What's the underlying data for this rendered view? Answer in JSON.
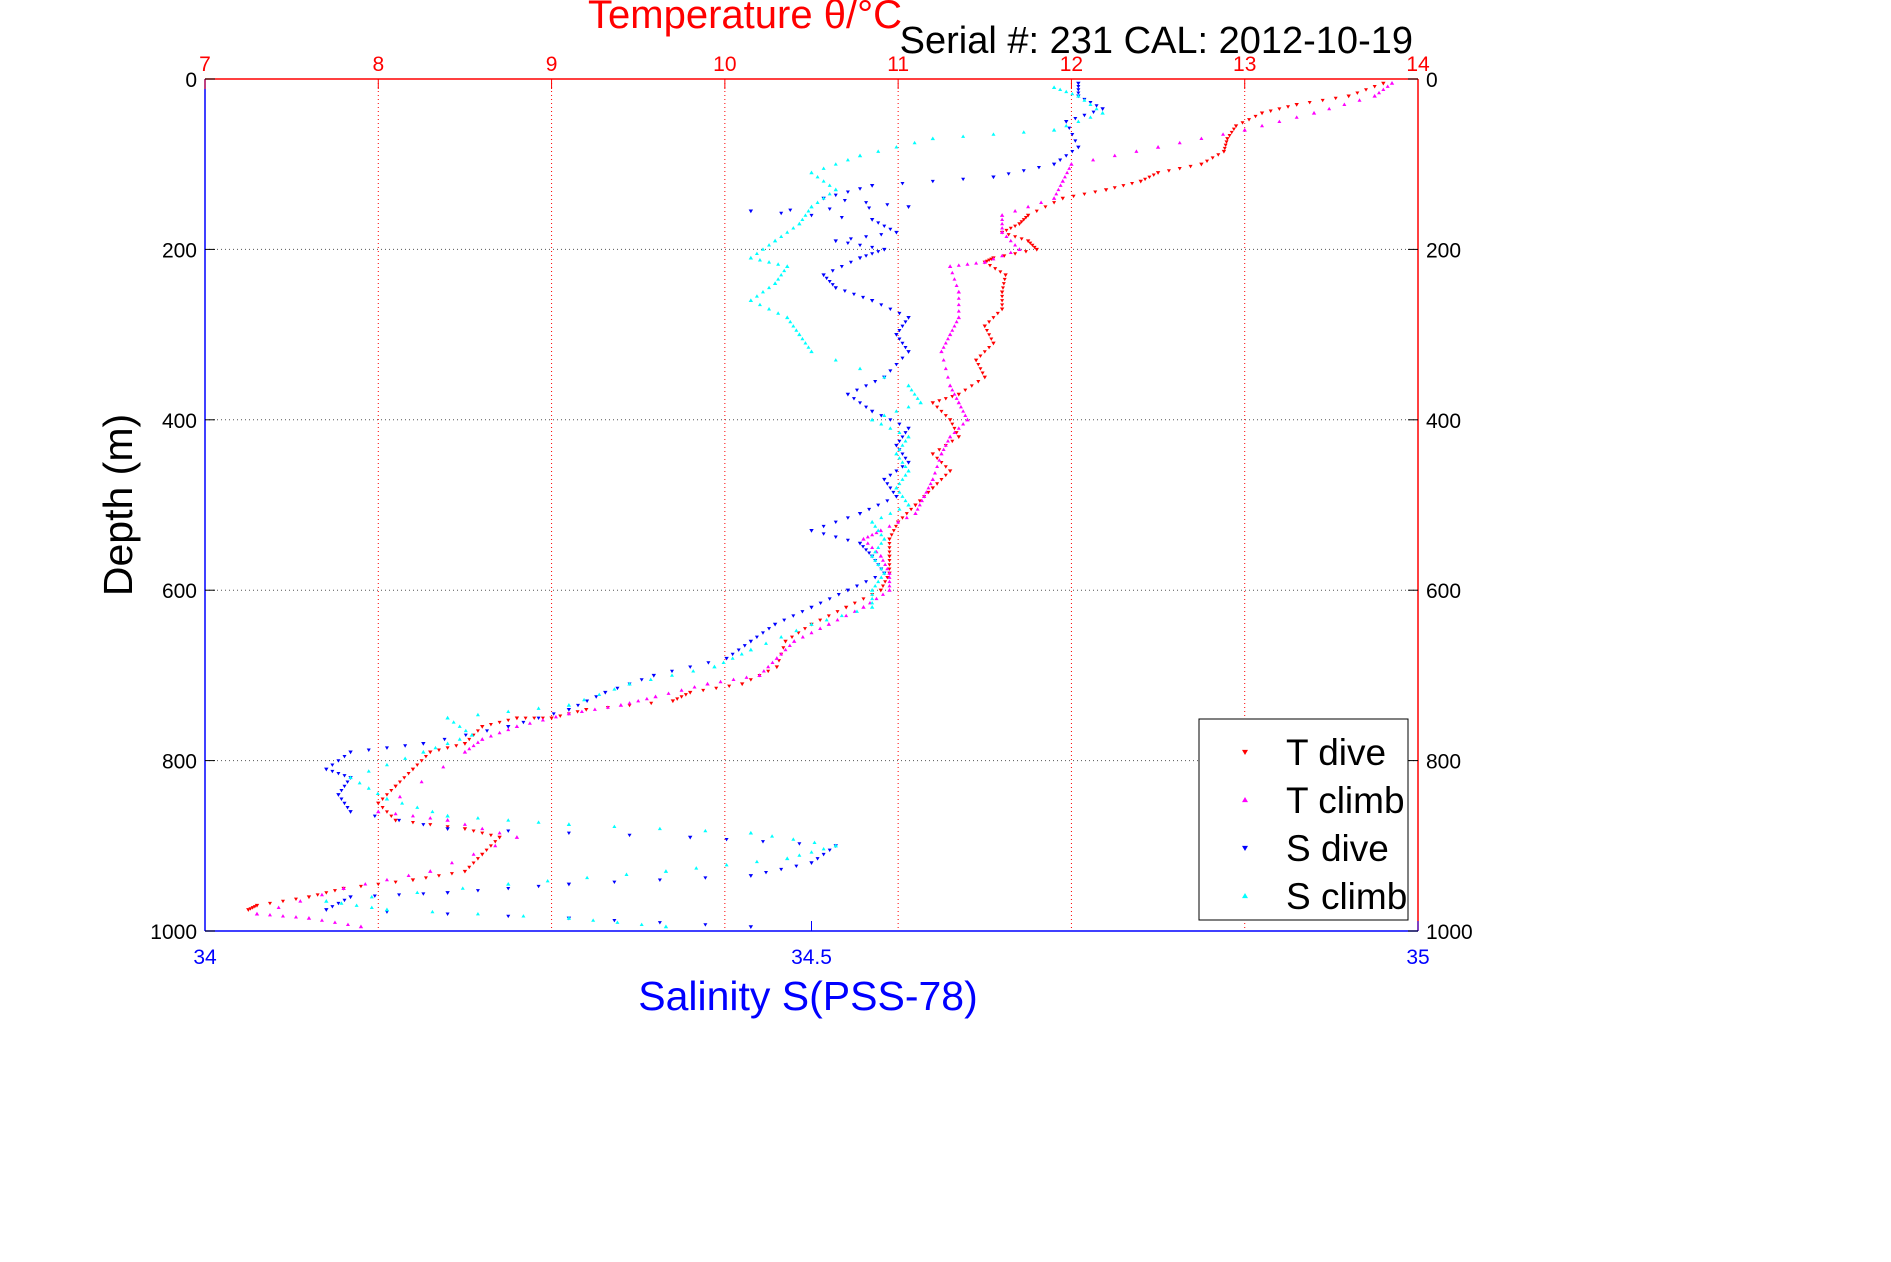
{
  "chart_data": {
    "type": "scatter",
    "title": "Temperature θ/°C",
    "subtitle": "Serial #: 231  CAL: 2012-10-19",
    "ylabel": "Depth (m)",
    "xlabel_bottom": "Salinity S(PSS-78)",
    "xlabel_top": "Temperature θ/°C",
    "ylim": [
      0,
      1000
    ],
    "y_reversed": true,
    "y_ticks": [
      "0",
      "200",
      "400",
      "600",
      "800",
      "1000"
    ],
    "x_top_lim": [
      7,
      14
    ],
    "x_top_ticks": [
      "7",
      "8",
      "9",
      "10",
      "11",
      "12",
      "13",
      "14"
    ],
    "x_bottom_lim": [
      34,
      35
    ],
    "x_bottom_ticks": [
      "34",
      "34.5",
      "35"
    ],
    "grid": true,
    "legend_position": "bottom-right",
    "colors": {
      "temperature_axis": "#ff0000",
      "salinity_axis": "#0000ff",
      "t_dive": "#ff0000",
      "t_climb": "#ff00ff",
      "s_dive": "#0000ff",
      "s_climb": "#00ffff"
    },
    "series": [
      {
        "name": "T dive",
        "axis": "temperature",
        "marker": "triangle-down",
        "points": [
          [
            13.8,
            5
          ],
          [
            13.6,
            20
          ],
          [
            13.3,
            30
          ],
          [
            13.1,
            40
          ],
          [
            12.95,
            55
          ],
          [
            12.9,
            70
          ],
          [
            12.88,
            85
          ],
          [
            12.75,
            100
          ],
          [
            12.5,
            110
          ],
          [
            12.4,
            120
          ],
          [
            12.2,
            130
          ],
          [
            11.95,
            140
          ],
          [
            11.75,
            160
          ],
          [
            11.7,
            170
          ],
          [
            11.6,
            180
          ],
          [
            11.75,
            190
          ],
          [
            11.8,
            200
          ],
          [
            11.55,
            210
          ],
          [
            11.5,
            215
          ],
          [
            11.62,
            230
          ],
          [
            11.6,
            250
          ],
          [
            11.6,
            270
          ],
          [
            11.5,
            290
          ],
          [
            11.55,
            310
          ],
          [
            11.45,
            330
          ],
          [
            11.5,
            350
          ],
          [
            11.35,
            370
          ],
          [
            11.2,
            380
          ],
          [
            11.3,
            400
          ],
          [
            11.35,
            420
          ],
          [
            11.2,
            440
          ],
          [
            11.3,
            460
          ],
          [
            11.2,
            480
          ],
          [
            11.1,
            500
          ],
          [
            11.0,
            520
          ],
          [
            10.95,
            540
          ],
          [
            10.95,
            560
          ],
          [
            10.95,
            580
          ],
          [
            10.9,
            600
          ],
          [
            10.7,
            620
          ],
          [
            10.5,
            640
          ],
          [
            10.35,
            660
          ],
          [
            10.3,
            690
          ],
          [
            10.1,
            710
          ],
          [
            9.8,
            720
          ],
          [
            9.7,
            730
          ],
          [
            9.2,
            740
          ],
          [
            9.0,
            750
          ],
          [
            8.8,
            750
          ],
          [
            8.6,
            760
          ],
          [
            8.5,
            780
          ],
          [
            8.3,
            790
          ],
          [
            8.2,
            810
          ],
          [
            8.1,
            830
          ],
          [
            8.0,
            850
          ],
          [
            8.1,
            870
          ],
          [
            8.5,
            880
          ],
          [
            8.7,
            890
          ],
          [
            8.6,
            910
          ],
          [
            8.5,
            930
          ],
          [
            8.2,
            940
          ],
          [
            7.8,
            950
          ],
          [
            7.6,
            960
          ],
          [
            7.3,
            970
          ],
          [
            7.25,
            975
          ]
        ]
      },
      {
        "name": "T climb",
        "axis": "temperature",
        "marker": "triangle-up",
        "points": [
          [
            7.9,
            995
          ],
          [
            7.6,
            985
          ],
          [
            7.3,
            980
          ],
          [
            7.8,
            950
          ],
          [
            8.3,
            930
          ],
          [
            8.8,
            890
          ],
          [
            8.4,
            870
          ],
          [
            8.0,
            860
          ],
          [
            8.5,
            790
          ],
          [
            8.6,
            775
          ],
          [
            8.8,
            760
          ],
          [
            9.1,
            745
          ],
          [
            9.4,
            735
          ],
          [
            9.6,
            725
          ],
          [
            9.9,
            710
          ],
          [
            10.2,
            700
          ],
          [
            10.3,
            680
          ],
          [
            10.4,
            660
          ],
          [
            10.6,
            640
          ],
          [
            10.8,
            620
          ],
          [
            10.95,
            600
          ],
          [
            10.95,
            580
          ],
          [
            10.9,
            560
          ],
          [
            10.8,
            540
          ],
          [
            10.9,
            530
          ],
          [
            11.1,
            510
          ],
          [
            11.15,
            490
          ],
          [
            11.2,
            470
          ],
          [
            11.25,
            440
          ],
          [
            11.3,
            420
          ],
          [
            11.4,
            400
          ],
          [
            11.35,
            380
          ],
          [
            11.3,
            360
          ],
          [
            11.25,
            320
          ],
          [
            11.3,
            300
          ],
          [
            11.35,
            280
          ],
          [
            11.35,
            250
          ],
          [
            11.3,
            220
          ],
          [
            11.5,
            215
          ],
          [
            11.7,
            200
          ],
          [
            11.6,
            180
          ],
          [
            11.6,
            160
          ],
          [
            11.9,
            140
          ],
          [
            11.95,
            120
          ],
          [
            12.0,
            100
          ],
          [
            12.5,
            80
          ],
          [
            13.0,
            60
          ],
          [
            13.4,
            40
          ],
          [
            13.75,
            20
          ],
          [
            13.85,
            5
          ]
        ]
      },
      {
        "name": "S dive",
        "axis": "salinity",
        "marker": "triangle-down",
        "points": [
          [
            34.72,
            5
          ],
          [
            34.72,
            20
          ],
          [
            34.74,
            35
          ],
          [
            34.71,
            50
          ],
          [
            34.72,
            80
          ],
          [
            34.7,
            100
          ],
          [
            34.65,
            115
          ],
          [
            34.55,
            125
          ],
          [
            34.51,
            140
          ],
          [
            34.58,
            150
          ],
          [
            34.45,
            155
          ],
          [
            34.55,
            165
          ],
          [
            34.57,
            180
          ],
          [
            34.52,
            190
          ],
          [
            34.56,
            200
          ],
          [
            34.54,
            210
          ],
          [
            34.51,
            230
          ],
          [
            34.52,
            245
          ],
          [
            34.55,
            260
          ],
          [
            34.58,
            280
          ],
          [
            34.57,
            300
          ],
          [
            34.58,
            320
          ],
          [
            34.56,
            350
          ],
          [
            34.53,
            370
          ],
          [
            34.55,
            390
          ],
          [
            34.58,
            410
          ],
          [
            34.57,
            430
          ],
          [
            34.58,
            450
          ],
          [
            34.56,
            470
          ],
          [
            34.57,
            490
          ],
          [
            34.54,
            510
          ],
          [
            34.5,
            530
          ],
          [
            34.54,
            545
          ],
          [
            34.55,
            560
          ],
          [
            34.56,
            580
          ],
          [
            34.53,
            600
          ],
          [
            34.5,
            620
          ],
          [
            34.47,
            640
          ],
          [
            34.45,
            660
          ],
          [
            34.43,
            680
          ],
          [
            34.37,
            700
          ],
          [
            34.33,
            720
          ],
          [
            34.3,
            740
          ],
          [
            34.25,
            760
          ],
          [
            34.18,
            780
          ],
          [
            34.12,
            790
          ],
          [
            34.1,
            810
          ],
          [
            34.12,
            820
          ],
          [
            34.11,
            840
          ],
          [
            34.12,
            860
          ],
          [
            34.2,
            880
          ],
          [
            34.4,
            890
          ],
          [
            34.52,
            900
          ],
          [
            34.5,
            920
          ],
          [
            34.45,
            935
          ],
          [
            34.3,
            945
          ],
          [
            34.2,
            955
          ],
          [
            34.12,
            960
          ],
          [
            34.1,
            975
          ],
          [
            34.3,
            985
          ],
          [
            34.45,
            995
          ]
        ]
      },
      {
        "name": "S climb",
        "axis": "salinity",
        "marker": "triangle-up",
        "points": [
          [
            34.38,
            995
          ],
          [
            34.3,
            985
          ],
          [
            34.15,
            975
          ],
          [
            34.1,
            965
          ],
          [
            34.25,
            945
          ],
          [
            34.38,
            930
          ],
          [
            34.48,
            915
          ],
          [
            34.52,
            900
          ],
          [
            34.45,
            885
          ],
          [
            34.3,
            875
          ],
          [
            34.2,
            865
          ],
          [
            34.15,
            845
          ],
          [
            34.12,
            820
          ],
          [
            34.18,
            790
          ],
          [
            34.22,
            770
          ],
          [
            34.2,
            750
          ],
          [
            34.3,
            735
          ],
          [
            34.35,
            710
          ],
          [
            34.42,
            690
          ],
          [
            34.45,
            670
          ],
          [
            34.5,
            640
          ],
          [
            34.55,
            620
          ],
          [
            34.55,
            600
          ],
          [
            34.56,
            580
          ],
          [
            34.55,
            560
          ],
          [
            34.56,
            540
          ],
          [
            34.55,
            520
          ],
          [
            34.58,
            500
          ],
          [
            34.57,
            480
          ],
          [
            34.58,
            460
          ],
          [
            34.57,
            440
          ],
          [
            34.58,
            420
          ],
          [
            34.55,
            400
          ],
          [
            34.59,
            380
          ],
          [
            34.58,
            360
          ],
          [
            34.5,
            320
          ],
          [
            34.49,
            300
          ],
          [
            34.48,
            280
          ],
          [
            34.45,
            260
          ],
          [
            34.47,
            240
          ],
          [
            34.48,
            220
          ],
          [
            34.45,
            210
          ],
          [
            34.47,
            190
          ],
          [
            34.49,
            170
          ],
          [
            34.5,
            150
          ],
          [
            34.52,
            130
          ],
          [
            34.5,
            110
          ],
          [
            34.54,
            90
          ],
          [
            34.6,
            70
          ],
          [
            34.7,
            60
          ],
          [
            34.74,
            40
          ],
          [
            34.72,
            20
          ],
          [
            34.7,
            10
          ]
        ]
      }
    ]
  }
}
